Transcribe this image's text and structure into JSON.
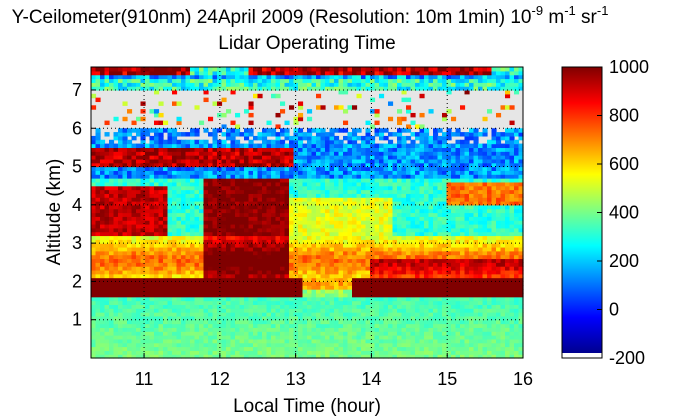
{
  "chart_data": {
    "type": "heatmap",
    "title": "Y-Ceilometer(910nm) 24April 2009 (Resolution: 10m 1min) 10",
    "title_units": {
      "exp1": "-9",
      "mid": " m",
      "exp2": "-1",
      "tail": " sr",
      "exp3": "-1"
    },
    "subtitle": "Lidar Operating Time",
    "xlabel": "Local Time (hour)",
    "ylabel": "Altitude (km)",
    "xlim": [
      10.3,
      16.0
    ],
    "ylim": [
      0.0,
      7.6
    ],
    "xticks": [
      "11",
      "12",
      "13",
      "14",
      "15",
      "16"
    ],
    "yticks": [
      "1",
      "2",
      "3",
      "4",
      "5",
      "6",
      "7"
    ],
    "grid": true,
    "colorbar": {
      "min": -200,
      "max": 1000,
      "ticks": [
        "1000",
        "800",
        "600",
        "400",
        "200",
        "0",
        "-200"
      ],
      "colormap": "jet",
      "low_color": "#ffffff"
    },
    "colors": {
      "missing": "#e6e6e6"
    }
  }
}
